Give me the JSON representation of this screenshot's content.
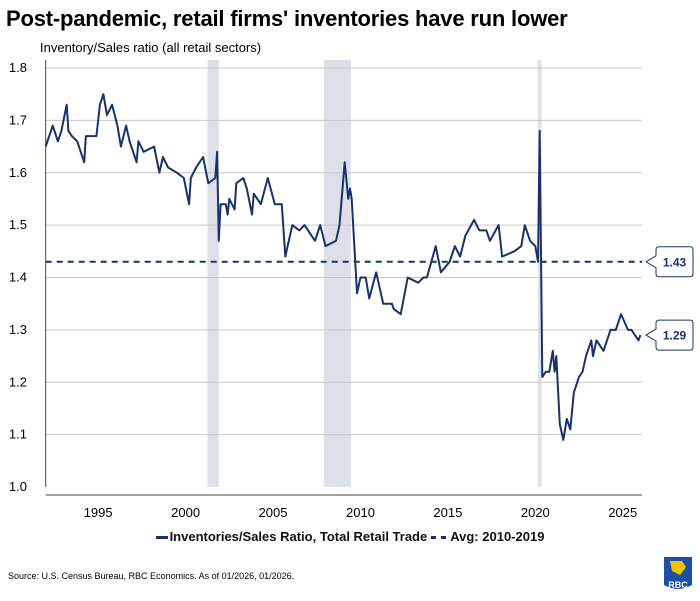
{
  "title": "Post-pandemic, retail firms' inventories have run lower",
  "source": "Source: U.S. Census Bureau, RBC Economics. As of 01/2026, 01/2026.",
  "logo_text": "RBC",
  "colors": {
    "line": "#1a3268",
    "band": "#dde0e8",
    "grid": "#c8c8c8"
  },
  "chart_data": {
    "type": "line",
    "title": "Post-pandemic, retail firms' inventories have run lower",
    "ylabel": "Inventory/Sales ratio (all retail sectors)",
    "xlabel": "",
    "xlim": [
      1992,
      2026.1
    ],
    "ylim": [
      1.0,
      1.8
    ],
    "x_ticks": [
      1995,
      2000,
      2005,
      2010,
      2015,
      2020,
      2025
    ],
    "y_ticks": [
      "1.0",
      "1.1",
      "1.2",
      "1.3",
      "1.4",
      "1.5",
      "1.6",
      "1.7",
      "1.8"
    ],
    "grid": "horizontal",
    "legend_position": "bottom",
    "shaded_periods": [
      [
        2001.25,
        2001.9
      ],
      [
        2007.9,
        2009.45
      ],
      [
        2020.15,
        2020.35
      ]
    ],
    "series": [
      {
        "name": "Inventories/Sales Ratio, Total Retail Trade",
        "style": "solid",
        "x": [
          1992.0,
          1992.4,
          1992.7,
          1992.9,
          1993.2,
          1993.3,
          1993.5,
          1993.8,
          1994.2,
          1994.3,
          1994.9,
          1995.1,
          1995.3,
          1995.5,
          1995.8,
          1996.1,
          1996.3,
          1996.6,
          1996.8,
          1997.2,
          1997.3,
          1997.6,
          1998.2,
          1998.5,
          1998.7,
          1999.0,
          1999.5,
          1999.9,
          2000.2,
          2000.3,
          2000.6,
          2001.0,
          2001.3,
          2001.7,
          2001.8,
          2001.9,
          2002.0,
          2002.3,
          2002.4,
          2002.5,
          2002.8,
          2002.9,
          2003.3,
          2003.5,
          2003.8,
          2003.9,
          2004.3,
          2004.7,
          2005.1,
          2005.5,
          2005.7,
          2006.1,
          2006.5,
          2006.8,
          2007.4,
          2007.7,
          2008.0,
          2008.6,
          2008.8,
          2009.1,
          2009.3,
          2009.4,
          2009.5,
          2009.8,
          2010.0,
          2010.3,
          2010.5,
          2010.9,
          2011.3,
          2011.8,
          2011.9,
          2012.3,
          2012.7,
          2013.3,
          2013.6,
          2013.8,
          2014.3,
          2014.6,
          2015.1,
          2015.4,
          2015.7,
          2016.0,
          2016.5,
          2016.8,
          2017.2,
          2017.4,
          2017.9,
          2018.1,
          2018.8,
          2019.2,
          2019.4,
          2019.7,
          2020.0,
          2020.15,
          2020.25,
          2020.4,
          2020.6,
          2020.8,
          2021.0,
          2021.1,
          2021.2,
          2021.4,
          2021.6,
          2021.8,
          2022.0,
          2022.2,
          2022.5,
          2022.7,
          2022.9,
          2023.2,
          2023.3,
          2023.5,
          2023.9,
          2024.3,
          2024.6,
          2024.9,
          2025.3,
          2025.5,
          2025.9,
          2026.0
        ],
        "values": [
          1.65,
          1.69,
          1.66,
          1.68,
          1.73,
          1.68,
          1.67,
          1.66,
          1.62,
          1.67,
          1.67,
          1.73,
          1.75,
          1.71,
          1.73,
          1.69,
          1.65,
          1.69,
          1.66,
          1.62,
          1.66,
          1.64,
          1.65,
          1.6,
          1.63,
          1.61,
          1.6,
          1.59,
          1.54,
          1.59,
          1.61,
          1.63,
          1.58,
          1.59,
          1.64,
          1.47,
          1.54,
          1.54,
          1.52,
          1.55,
          1.53,
          1.58,
          1.59,
          1.57,
          1.52,
          1.56,
          1.54,
          1.59,
          1.54,
          1.54,
          1.44,
          1.5,
          1.49,
          1.5,
          1.47,
          1.5,
          1.46,
          1.47,
          1.5,
          1.62,
          1.55,
          1.57,
          1.55,
          1.37,
          1.4,
          1.4,
          1.36,
          1.41,
          1.35,
          1.35,
          1.34,
          1.33,
          1.4,
          1.39,
          1.4,
          1.4,
          1.46,
          1.41,
          1.43,
          1.46,
          1.44,
          1.48,
          1.51,
          1.49,
          1.49,
          1.47,
          1.5,
          1.44,
          1.45,
          1.46,
          1.5,
          1.47,
          1.46,
          1.43,
          1.68,
          1.21,
          1.22,
          1.22,
          1.26,
          1.22,
          1.25,
          1.12,
          1.09,
          1.13,
          1.11,
          1.18,
          1.21,
          1.22,
          1.25,
          1.28,
          1.25,
          1.28,
          1.26,
          1.3,
          1.3,
          1.33,
          1.3,
          1.3,
          1.28,
          1.29
        ]
      },
      {
        "name": "Avg: 2010-2019",
        "style": "dashed",
        "value": 1.43
      }
    ],
    "annotations": [
      {
        "label": "1.43",
        "value": 1.43
      },
      {
        "label": "1.29",
        "value": 1.29
      }
    ],
    "legend": [
      "Inventories/Sales Ratio, Total Retail Trade",
      "Avg: 2010-2019"
    ]
  }
}
